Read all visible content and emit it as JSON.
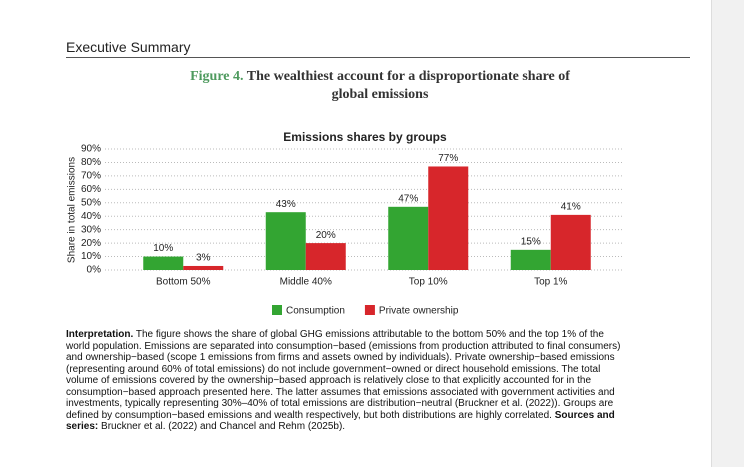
{
  "header": "Executive Summary",
  "figure": {
    "label": "Figure 4.",
    "title_lines": [
      "The wealthiest account for a disproportionate share of",
      "global emissions"
    ]
  },
  "chart_data": {
    "type": "bar",
    "title": "Emissions shares by groups",
    "y_label": "Share in total emissions",
    "categories": [
      "Bottom 50%",
      "Middle 40%",
      "Top 10%",
      "Top 1%"
    ],
    "series": [
      {
        "name": "Consumption",
        "color": "#33a532",
        "values": [
          10,
          43,
          47,
          15
        ],
        "value_labels": [
          "10%",
          "43%",
          "47%",
          "15%"
        ]
      },
      {
        "name": "Private ownership",
        "color": "#d7262b",
        "values": [
          3,
          20,
          77,
          41
        ],
        "value_labels": [
          "3%",
          "20%",
          "77%",
          "41%"
        ]
      }
    ],
    "ylim": [
      0,
      90
    ],
    "yticks": [
      {
        "value": 0,
        "label": "0%"
      },
      {
        "value": 10,
        "label": "10%"
      },
      {
        "value": 20,
        "label": "20%"
      },
      {
        "value": 30,
        "label": "30%"
      },
      {
        "value": 40,
        "label": "40%"
      },
      {
        "value": 50,
        "label": "50%"
      },
      {
        "value": 60,
        "label": "60%"
      },
      {
        "value": 70,
        "label": "70%"
      },
      {
        "value": 80,
        "label": "80%"
      },
      {
        "value": 90,
        "label": "90%"
      }
    ],
    "grid": true,
    "legend": "bottom"
  },
  "interpretation": {
    "label": "Interpretation.",
    "text": "The figure shows the share of global GHG emissions attributable to the bottom 50% and the top 1% of the world population. Emissions are separated into consumption−based (emissions from production attributed to final consumers) and ownership−based (scope 1 emissions from firms and assets owned by individuals). Private ownership−based emissions (representing around 60% of total emissions) do not include government−owned or direct household emissions. The total volume of emissions covered by the ownership−based approach is relatively close to that explicitly accounted for in the consumption−based approach presented here. The latter assumes that emissions associated with government activities and investments, typically representing 30%–40% of total emissions are distribution−neutral (Bruckner et al. (2022)). Groups are defined by consumption−based emissions and wealth respectively, but both distributions are highly correlated.",
    "sources_label": "Sources and series:",
    "sources": "Bruckner et al. (2022) and Chancel and Rehm (2025b)."
  }
}
